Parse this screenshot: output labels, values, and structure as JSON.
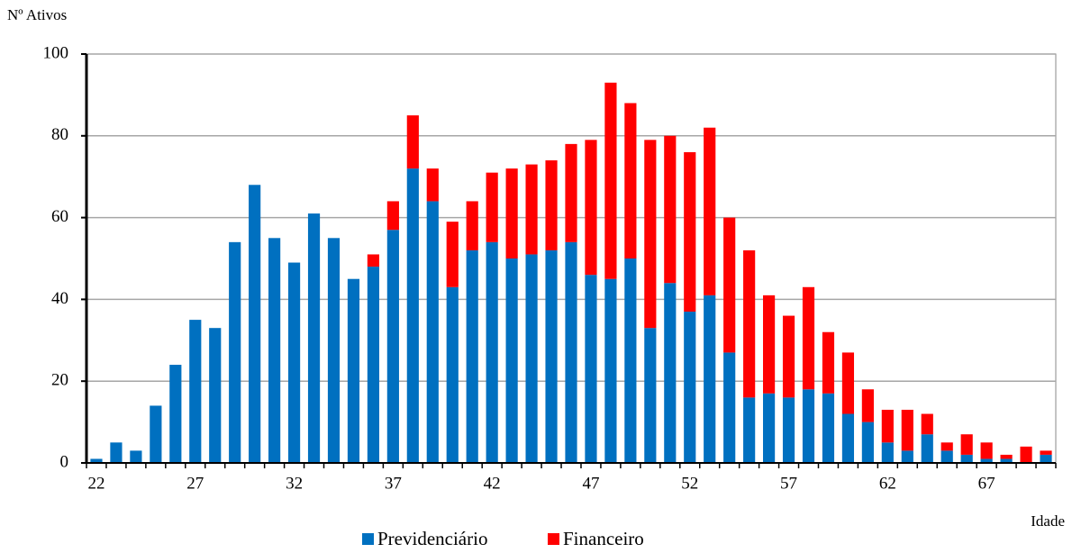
{
  "chart_data": {
    "type": "stacked_bar",
    "y_label": "Nº Ativos",
    "x_label": "Idade",
    "categories": [
      "22",
      null,
      null,
      null,
      null,
      "27",
      null,
      null,
      null,
      null,
      "32",
      null,
      null,
      null,
      null,
      "37",
      null,
      null,
      null,
      null,
      "42",
      null,
      null,
      null,
      null,
      "47",
      null,
      null,
      null,
      null,
      "52",
      null,
      null,
      null,
      null,
      "57",
      null,
      null,
      null,
      null,
      "62",
      null,
      null,
      null,
      null,
      "67",
      null,
      null,
      null
    ],
    "series": [
      {
        "name": "Previdenciário",
        "color": "#0070c0",
        "values": [
          1,
          5,
          3,
          14,
          24,
          35,
          33,
          54,
          68,
          55,
          49,
          61,
          55,
          45,
          48,
          57,
          72,
          64,
          43,
          52,
          54,
          50,
          51,
          52,
          54,
          46,
          45,
          50,
          33,
          44,
          37,
          41,
          27,
          16,
          17,
          16,
          18,
          17,
          12,
          10,
          5,
          3,
          7,
          3,
          2,
          1,
          1,
          0,
          2
        ]
      },
      {
        "name": "Financeiro",
        "color": "#ff0000",
        "values": [
          0,
          0,
          0,
          0,
          0,
          0,
          0,
          0,
          0,
          0,
          0,
          0,
          0,
          0,
          3,
          7,
          13,
          8,
          16,
          12,
          17,
          22,
          22,
          22,
          24,
          33,
          48,
          38,
          46,
          36,
          39,
          41,
          33,
          36,
          24,
          20,
          25,
          15,
          15,
          8,
          8,
          10,
          5,
          2,
          5,
          4,
          1,
          4,
          1
        ]
      }
    ],
    "ylim": [
      0,
      100
    ],
    "yticks": [
      0,
      20,
      40,
      60,
      80,
      100
    ],
    "grid": true,
    "legend": "bottom"
  }
}
